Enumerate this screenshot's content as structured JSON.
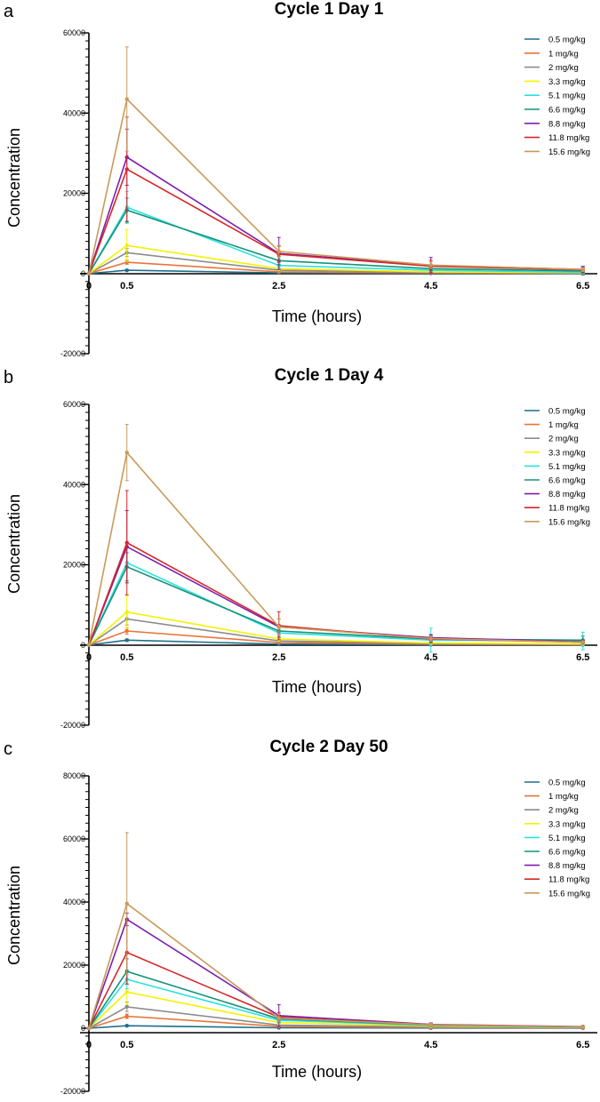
{
  "chart_data": [
    {
      "type": "line",
      "panel_label": "a",
      "title": "Cycle 1 Day 1",
      "xlabel": "Time (hours)",
      "ylabel": "Concentration",
      "x": [
        0,
        0.5,
        2.5,
        4.5,
        6.5
      ],
      "xticks": [
        "0",
        "0.5",
        "2.5",
        "4.5",
        "6.5"
      ],
      "ylim": [
        -20000,
        60000
      ],
      "yticks": [
        -20000,
        0,
        20000,
        40000,
        60000
      ],
      "legend_position": "top-right",
      "series": [
        {
          "name": "0.5 mg/kg",
          "color": "#1f6f8b",
          "values": [
            0,
            800,
            150,
            50,
            20
          ],
          "err": [
            0,
            200,
            50,
            20,
            10
          ]
        },
        {
          "name": "1 mg/kg",
          "color": "#e8743b",
          "values": [
            0,
            2800,
            400,
            150,
            60
          ],
          "err": [
            0,
            500,
            100,
            50,
            20
          ]
        },
        {
          "name": "2 mg/kg",
          "color": "#8c8c8c",
          "values": [
            0,
            5200,
            800,
            300,
            100
          ],
          "err": [
            0,
            1000,
            200,
            80,
            30
          ]
        },
        {
          "name": "3.3 mg/kg",
          "color": "#f2f200",
          "values": [
            0,
            7000,
            1200,
            400,
            200
          ],
          "err": [
            0,
            4000,
            500,
            200,
            100
          ]
        },
        {
          "name": "5.1 mg/kg",
          "color": "#2de0e0",
          "values": [
            0,
            16500,
            2000,
            800,
            300
          ],
          "err": [
            0,
            4000,
            800,
            300,
            150
          ]
        },
        {
          "name": "6.6 mg/kg",
          "color": "#14947a",
          "values": [
            0,
            15800,
            3200,
            1200,
            600
          ],
          "err": [
            0,
            3000,
            1000,
            500,
            1000
          ]
        },
        {
          "name": "8.8 mg/kg",
          "color": "#7a1fb0",
          "values": [
            0,
            29000,
            5000,
            2000,
            1000
          ],
          "err": [
            0,
            7000,
            4000,
            2000,
            800
          ]
        },
        {
          "name": "11.8 mg/kg",
          "color": "#d62728",
          "values": [
            0,
            26000,
            4800,
            1800,
            900
          ],
          "err": [
            0,
            13000,
            2000,
            1500,
            600
          ]
        },
        {
          "name": "15.6 mg/kg",
          "color": "#c99a5b",
          "values": [
            0,
            43500,
            5500,
            2100,
            1000
          ],
          "err": [
            0,
            13000,
            1500,
            800,
            500
          ]
        }
      ]
    },
    {
      "type": "line",
      "panel_label": "b",
      "title": "Cycle 1 Day 4",
      "xlabel": "Time (hours)",
      "ylabel": "Concentration",
      "x": [
        0,
        0.5,
        2.5,
        4.5,
        6.5
      ],
      "xticks": [
        "0",
        "0.5",
        "2.5",
        "4.5",
        "6.5"
      ],
      "ylim": [
        -20000,
        60000
      ],
      "yticks": [
        -20000,
        0,
        20000,
        40000,
        60000
      ],
      "legend_position": "top-right",
      "series": [
        {
          "name": "0.5 mg/kg",
          "color": "#1f6f8b",
          "values": [
            0,
            1200,
            200,
            80,
            30
          ],
          "err": [
            0,
            300,
            50,
            30,
            10
          ]
        },
        {
          "name": "1 mg/kg",
          "color": "#e8743b",
          "values": [
            0,
            3500,
            600,
            200,
            80
          ],
          "err": [
            0,
            800,
            150,
            60,
            20
          ]
        },
        {
          "name": "2 mg/kg",
          "color": "#8c8c8c",
          "values": [
            0,
            6500,
            1000,
            400,
            150
          ],
          "err": [
            0,
            1500,
            300,
            100,
            50
          ]
        },
        {
          "name": "3.3 mg/kg",
          "color": "#f2f200",
          "values": [
            0,
            8200,
            1500,
            500,
            250
          ],
          "err": [
            0,
            4000,
            600,
            200,
            100
          ]
        },
        {
          "name": "5.1 mg/kg",
          "color": "#2de0e0",
          "values": [
            0,
            20500,
            3000,
            1200,
            1000
          ],
          "err": [
            0,
            5000,
            1200,
            3000,
            2200
          ]
        },
        {
          "name": "6.6 mg/kg",
          "color": "#14947a",
          "values": [
            0,
            19500,
            3500,
            1500,
            1200
          ],
          "err": [
            0,
            3500,
            1500,
            1000,
            1000
          ]
        },
        {
          "name": "8.8 mg/kg",
          "color": "#7a1fb0",
          "values": [
            0,
            24500,
            4500,
            1800,
            800
          ],
          "err": [
            0,
            9000,
            2000,
            800,
            400
          ]
        },
        {
          "name": "11.8 mg/kg",
          "color": "#d62728",
          "values": [
            0,
            25500,
            4800,
            1500,
            700
          ],
          "err": [
            0,
            13000,
            3500,
            700,
            300
          ]
        },
        {
          "name": "15.6 mg/kg",
          "color": "#c99a5b",
          "values": [
            0,
            48000,
            4500,
            1600,
            700
          ],
          "err": [
            0,
            7000,
            2000,
            600,
            300
          ]
        }
      ]
    },
    {
      "type": "line",
      "panel_label": "c",
      "title": "Cycle 2 Day 50",
      "xlabel": "Time (hours)",
      "ylabel": "Concentration",
      "x": [
        0,
        0.5,
        2.5,
        4.5,
        6.5
      ],
      "xticks": [
        "0",
        "0.5",
        "2.5",
        "4.5",
        "6.5"
      ],
      "ylim": [
        -20000,
        80000
      ],
      "yticks": [
        -20000,
        0,
        20000,
        40000,
        60000,
        80000
      ],
      "legend_position": "top-right",
      "series": [
        {
          "name": "0.5 mg/kg",
          "color": "#1f6f8b",
          "values": [
            0,
            800,
            150,
            50,
            20
          ],
          "err": [
            0,
            200,
            50,
            20,
            10
          ]
        },
        {
          "name": "1 mg/kg",
          "color": "#e8743b",
          "values": [
            0,
            3800,
            600,
            200,
            80
          ],
          "err": [
            0,
            700,
            150,
            60,
            20
          ]
        },
        {
          "name": "2 mg/kg",
          "color": "#8c8c8c",
          "values": [
            0,
            6800,
            1000,
            400,
            150
          ],
          "err": [
            0,
            1500,
            300,
            100,
            50
          ]
        },
        {
          "name": "3.3 mg/kg",
          "color": "#f2f200",
          "values": [
            0,
            11500,
            1800,
            700,
            250
          ],
          "err": [
            0,
            4000,
            600,
            200,
            100
          ]
        },
        {
          "name": "5.1 mg/kg",
          "color": "#2de0e0",
          "values": [
            0,
            15500,
            2500,
            900,
            300
          ],
          "err": [
            0,
            3000,
            800,
            300,
            150
          ]
        },
        {
          "name": "6.6 mg/kg",
          "color": "#14947a",
          "values": [
            0,
            18000,
            3000,
            1000,
            400
          ],
          "err": [
            0,
            4000,
            1000,
            400,
            200
          ]
        },
        {
          "name": "8.8 mg/kg",
          "color": "#7a1fb0",
          "values": [
            0,
            34500,
            4000,
            1200,
            500
          ],
          "err": [
            0,
            2000,
            3500,
            500,
            200
          ]
        },
        {
          "name": "11.8 mg/kg",
          "color": "#d62728",
          "values": [
            0,
            24000,
            3500,
            1100,
            450
          ],
          "err": [
            0,
            10000,
            1500,
            400,
            200
          ]
        },
        {
          "name": "15.6 mg/kg",
          "color": "#c99a5b",
          "values": [
            0,
            39500,
            3200,
            1100,
            450
          ],
          "err": [
            0,
            22500,
            1200,
            400,
            200
          ]
        }
      ]
    }
  ]
}
